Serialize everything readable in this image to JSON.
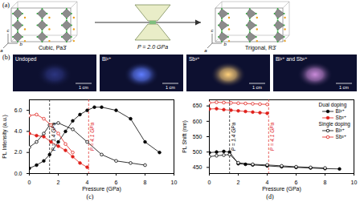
{
  "figure": {
    "a": {
      "label": "(a)",
      "left": {
        "caption": "Cubic, Pa3̄",
        "axes": [
          "c",
          "a",
          "b"
        ]
      },
      "arrow": {
        "label": "P = 2.0 GPa"
      },
      "right": {
        "caption": "Trigonal, R3̄",
        "axes": [
          "c",
          "a",
          "b"
        ]
      }
    },
    "b": {
      "label": "(b)",
      "photos": [
        {
          "label": "Undoped",
          "scale": "1 cm",
          "color": "#2c3580"
        },
        {
          "label": "Bi³⁺",
          "scale": "1 cm",
          "color": "#5f7dff"
        },
        {
          "label": "Sb³⁺",
          "scale": "1 cm",
          "color": "#ffd07a"
        },
        {
          "label": "Bi³⁺ and Sb³⁺",
          "scale": "1 cm",
          "color": "#c98ad8"
        }
      ]
    }
  },
  "chart_data": [
    {
      "type": "line",
      "title": "(c)",
      "x_label": "Pressure (GPa)",
      "y_label": "PL Intensity (a.u.)",
      "xlim": [
        0,
        10
      ],
      "xticks": [
        0,
        2,
        4,
        6,
        8,
        10
      ],
      "ylim": [
        0,
        7
      ],
      "yticks": [
        0,
        2,
        4,
        6
      ],
      "series": [
        {
          "name": "Bi³⁺",
          "group": "Dual doping",
          "color": "#000000",
          "marker": "filled",
          "line_style": "solid",
          "x": [
            0,
            0.5,
            1,
            1.4,
            2,
            2.5,
            3,
            3.5,
            4,
            4.5,
            5,
            6,
            7,
            8,
            9
          ],
          "values": [
            0.5,
            0.8,
            1.2,
            1.8,
            3.0,
            4.0,
            5.0,
            5.6,
            6.0,
            6.3,
            6.3,
            6.0,
            5.2,
            3.0,
            2.0
          ]
        },
        {
          "name": "Sb³⁺",
          "group": "Dual doping",
          "color": "#e0201b",
          "marker": "filled",
          "line_style": "solid",
          "x": [
            0,
            0.5,
            1,
            1.5,
            2,
            2.5,
            3,
            3.5,
            4
          ],
          "values": [
            3.8,
            3.6,
            3.5,
            3.0,
            2.6,
            2.2,
            1.6,
            1.0,
            0.6
          ]
        },
        {
          "name": "Bi³⁺",
          "group": "Single doping",
          "color": "#000000",
          "marker": "open",
          "line_style": "solid",
          "x": [
            0,
            0.5,
            1,
            1.4,
            2,
            3,
            4,
            5,
            6,
            7,
            8
          ],
          "values": [
            2.5,
            3.0,
            3.8,
            4.6,
            4.8,
            4.2,
            3.0,
            1.8,
            1.2,
            1.0,
            0.8
          ]
        },
        {
          "name": "Sb³⁺",
          "group": "Single doping",
          "color": "#e0201b",
          "marker": "open",
          "line_style": "solid",
          "x": [
            0,
            0.5,
            1,
            1.5,
            2,
            2.5,
            3
          ],
          "values": [
            5.5,
            5.6,
            5.2,
            4.6,
            3.8,
            2.8,
            2.0
          ]
        }
      ],
      "annotations": [
        {
          "text": "P = 1.4 GPa",
          "x": 1.4,
          "color": "#000000",
          "line_style": "dashed"
        },
        {
          "text": "P = 4.1 GPa",
          "x": 4.1,
          "color": "#e0201b",
          "line_style": "dashed"
        }
      ]
    },
    {
      "type": "line",
      "title": "(d)",
      "x_label": "Pressure (GPa)",
      "y_label": "PL Shift (nm)",
      "xlim": [
        0,
        10
      ],
      "xticks": [
        0,
        2,
        4,
        6,
        8,
        10
      ],
      "ylim": [
        430,
        670
      ],
      "yticks": [
        450,
        500,
        550,
        600,
        650
      ],
      "legend": "upper right",
      "series": [
        {
          "name": "Bi³⁺",
          "group": "Dual doping",
          "color": "#000000",
          "marker": "filled",
          "line_style": "solid",
          "x": [
            0,
            0.5,
            1,
            1.4,
            2,
            2.5,
            3,
            4,
            5,
            6,
            7,
            8,
            9
          ],
          "values": [
            498,
            500,
            502,
            500,
            462,
            460,
            458,
            455,
            452,
            450,
            448,
            446,
            445
          ]
        },
        {
          "name": "Sb³⁺",
          "group": "Dual doping",
          "color": "#e0201b",
          "marker": "filled",
          "line_style": "solid",
          "x": [
            0,
            0.5,
            1,
            1.5,
            2,
            2.5,
            3,
            3.5,
            4
          ],
          "values": [
            640,
            641,
            638,
            636,
            634,
            632,
            630,
            628,
            626
          ]
        },
        {
          "name": "Bi³⁺",
          "group": "Single doping",
          "color": "#000000",
          "marker": "open",
          "line_style": "solid",
          "x": [
            0,
            0.5,
            1,
            1.4,
            2,
            3,
            4,
            5,
            6,
            7,
            8
          ],
          "values": [
            485,
            488,
            490,
            492,
            465,
            460,
            458,
            455,
            452,
            450,
            448
          ]
        },
        {
          "name": "Sb³⁺",
          "group": "Single doping",
          "color": "#e0201b",
          "marker": "open",
          "line_style": "solid",
          "x": [
            0,
            0.5,
            1,
            1.5,
            2,
            2.5,
            3,
            3.5,
            4
          ],
          "values": [
            660,
            662,
            661,
            660,
            659,
            658,
            657,
            656,
            655
          ]
        }
      ],
      "annotations": [
        {
          "text": "P = 1.4 GPa",
          "x": 1.4,
          "color": "#000000",
          "line_style": "dashed"
        },
        {
          "text": "P = 4.1 GPa",
          "x": 4.1,
          "color": "#e0201b",
          "line_style": "dashed"
        }
      ]
    }
  ]
}
